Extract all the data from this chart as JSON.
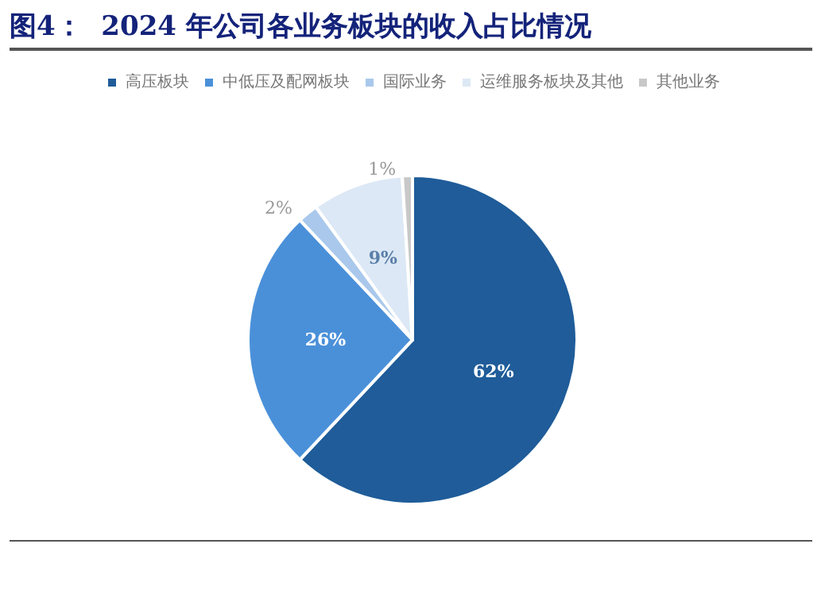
{
  "chart_data": {
    "type": "pie",
    "title": "图4：  2024 年公司各业务板块的收入占比情况",
    "categories": [
      "高压板块",
      "中低压及配网板块",
      "国际业务",
      "运维服务板块及其他",
      "其他业务"
    ],
    "values": [
      62,
      26,
      2,
      9,
      1
    ],
    "colors": [
      "#1f5c99",
      "#4a90d9",
      "#a9c8ec",
      "#dce8f5",
      "#c8c8c8"
    ],
    "value_labels": [
      "62%",
      "26%",
      "2%",
      "9%",
      "1%"
    ],
    "legend": "top"
  }
}
